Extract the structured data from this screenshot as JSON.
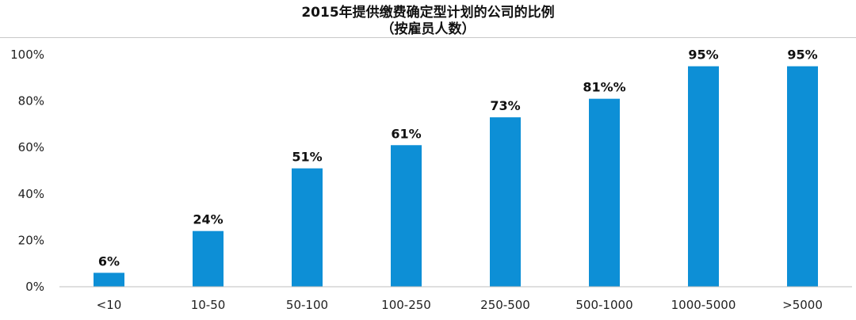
{
  "chart_data": {
    "type": "bar",
    "title": "2015年提供缴费确定型计划的公司的比例",
    "subtitle": "（按雇员人数）",
    "xlabel": "",
    "ylabel": "",
    "ylim": [
      0,
      100
    ],
    "yticks": [
      "0%",
      "20%",
      "40%",
      "60%",
      "80%",
      "100%"
    ],
    "ytick_values": [
      0,
      20,
      40,
      60,
      80,
      100
    ],
    "categories": [
      "<10",
      "10-50",
      "50-100",
      "100-250",
      "250-500",
      "500-1000",
      "1000-5000",
      ">5000"
    ],
    "values": [
      6,
      24,
      51,
      61,
      73,
      81,
      95,
      95
    ],
    "data_labels": [
      "6%",
      "24%",
      "51%",
      "61%",
      "73%",
      "81%%",
      "95%",
      "95%"
    ],
    "bar_color": "#0d8fd6",
    "grid": false,
    "legend": "none"
  }
}
